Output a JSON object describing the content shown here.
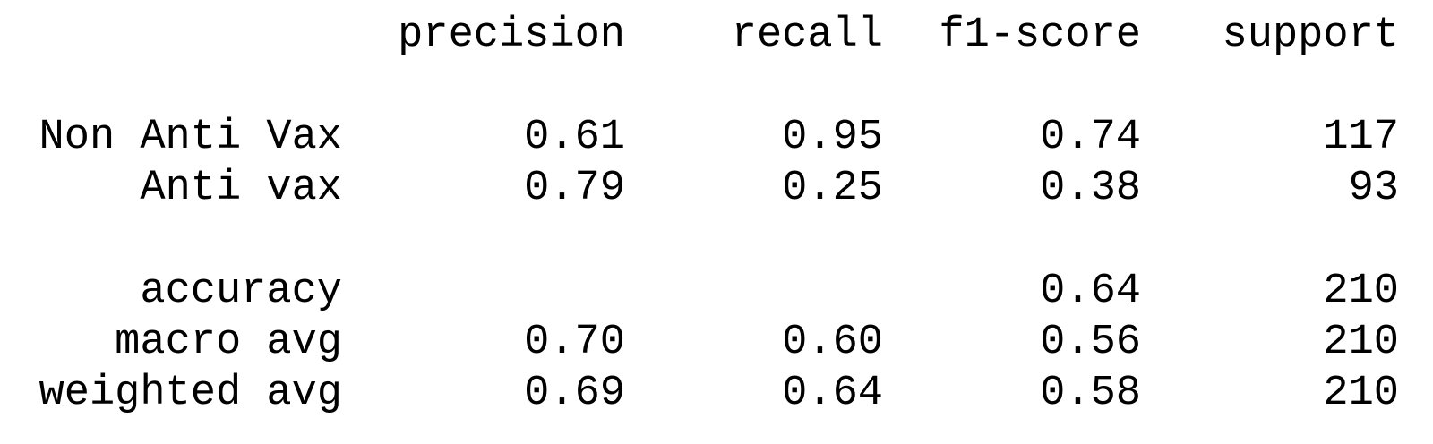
{
  "columns": {
    "precision": "precision",
    "recall": "recall",
    "f1_score": "f1-score",
    "support": "support"
  },
  "classes": [
    {
      "label": "Non Anti Vax",
      "precision": "0.61",
      "recall": "0.95",
      "f1_score": "0.74",
      "support": "117"
    },
    {
      "label": "Anti vax",
      "precision": "0.79",
      "recall": "0.25",
      "f1_score": "0.38",
      "support": "93"
    }
  ],
  "summary": {
    "accuracy": {
      "label": "accuracy",
      "precision": "",
      "recall": "",
      "f1_score": "0.64",
      "support": "210"
    },
    "macro_avg": {
      "label": "macro avg",
      "precision": "0.70",
      "recall": "0.60",
      "f1_score": "0.56",
      "support": "210"
    },
    "weighted_avg": {
      "label": "weighted avg",
      "precision": "0.69",
      "recall": "0.64",
      "f1_score": "0.58",
      "support": "210"
    }
  }
}
